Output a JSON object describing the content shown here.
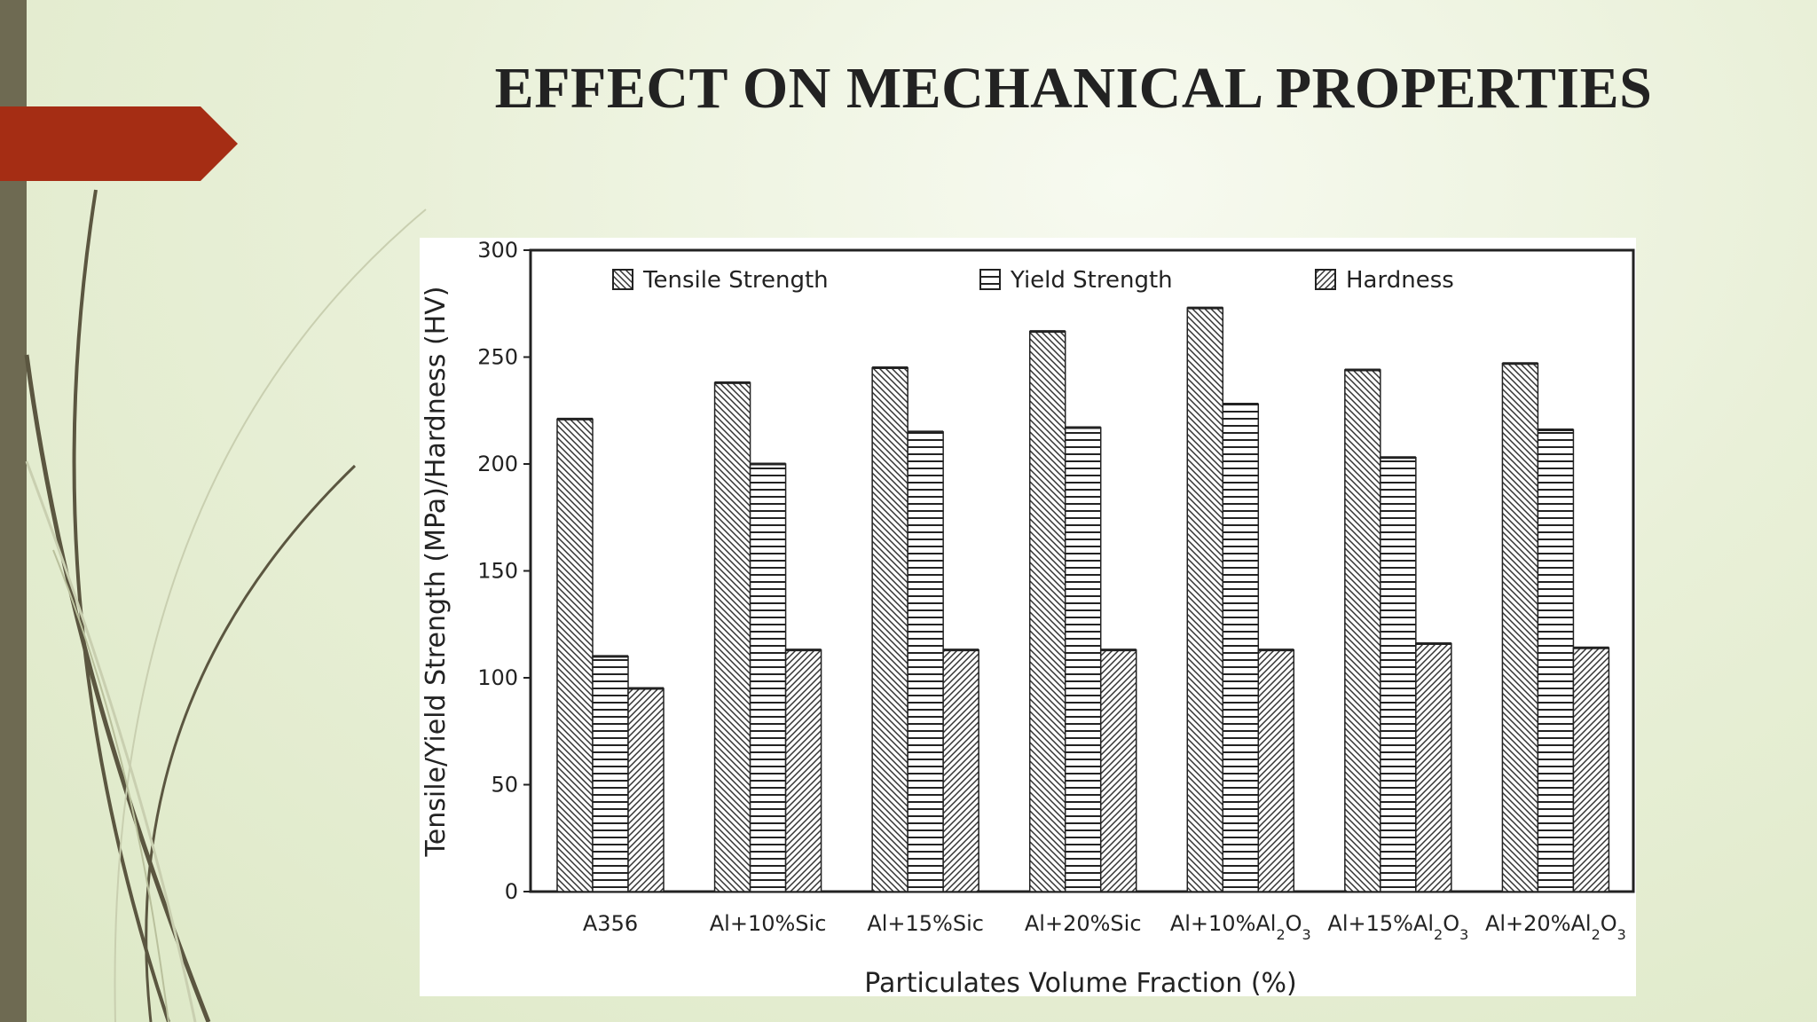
{
  "slide": {
    "title": "EFFECT ON MECHANICAL PROPERTIES",
    "colors": {
      "accent_arrow": "#a52d14",
      "side_bar": "#6e6a52",
      "stroke_dark": "#5b5640",
      "stroke_light": "#c9cfb0"
    }
  },
  "chart_data": {
    "type": "bar",
    "title": "",
    "xlabel": "Particulates Volume Fraction (%)",
    "ylabel": "Tensile/Yield Strength (MPa)/Hardness (HV)",
    "ylim": [
      0,
      300
    ],
    "yticks": [
      "0",
      "50",
      "100",
      "150",
      "200",
      "250",
      "300"
    ],
    "grid": false,
    "legend_position": "top",
    "categories": [
      {
        "base": "A356",
        "sub": "",
        "tail": ""
      },
      {
        "base": "Al+10%Sic",
        "sub": "",
        "tail": ""
      },
      {
        "base": "Al+15%Sic",
        "sub": "",
        "tail": ""
      },
      {
        "base": "Al+20%Sic",
        "sub": "",
        "tail": ""
      },
      {
        "base": "Al+10%Al",
        "sub": "2",
        "tail": "O",
        "sub2": "3"
      },
      {
        "base": "Al+15%Al",
        "sub": "2",
        "tail": "O",
        "sub2": "3"
      },
      {
        "base": "Al+20%Al",
        "sub": "2",
        "tail": "O",
        "sub2": "3"
      }
    ],
    "series": [
      {
        "name": "Tensile Strength",
        "pattern": "backslash-hatch",
        "values": [
          221,
          238,
          245,
          262,
          273,
          244,
          247
        ]
      },
      {
        "name": "Yield Strength",
        "pattern": "horizontal-lines",
        "values": [
          110,
          200,
          215,
          217,
          228,
          203,
          216
        ]
      },
      {
        "name": "Hardness",
        "pattern": "slash-hatch",
        "values": [
          95,
          113,
          113,
          113,
          113,
          116,
          114
        ]
      }
    ]
  }
}
